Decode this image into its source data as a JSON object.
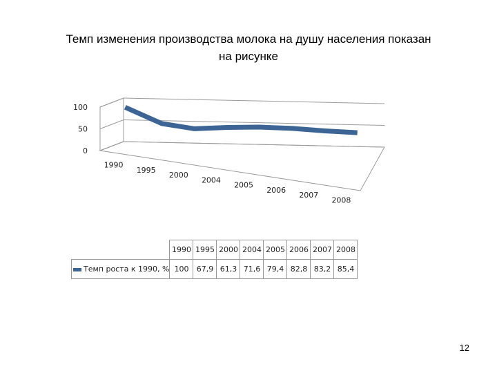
{
  "slide": {
    "title_line1": "Темп изменения производства молока на душу населения показан",
    "title_line2": "на рисунке",
    "page_number": "12"
  },
  "colors": {
    "series": "#3c6596",
    "grid": "#9a9a9a"
  },
  "chart_data": {
    "type": "line",
    "title": "",
    "categories": [
      "1990",
      "1995",
      "2000",
      "2004",
      "2005",
      "2006",
      "2007",
      "2008"
    ],
    "series": [
      {
        "name": "Темп роста к 1990, %",
        "values": [
          100,
          67.9,
          61.3,
          71.6,
          79.4,
          82.8,
          83.2,
          85.4
        ]
      }
    ],
    "y_ticks": [
      "0",
      "50",
      "100"
    ],
    "ylim": [
      0,
      100
    ],
    "grid": true,
    "legend": "table-left",
    "data_table": true
  }
}
